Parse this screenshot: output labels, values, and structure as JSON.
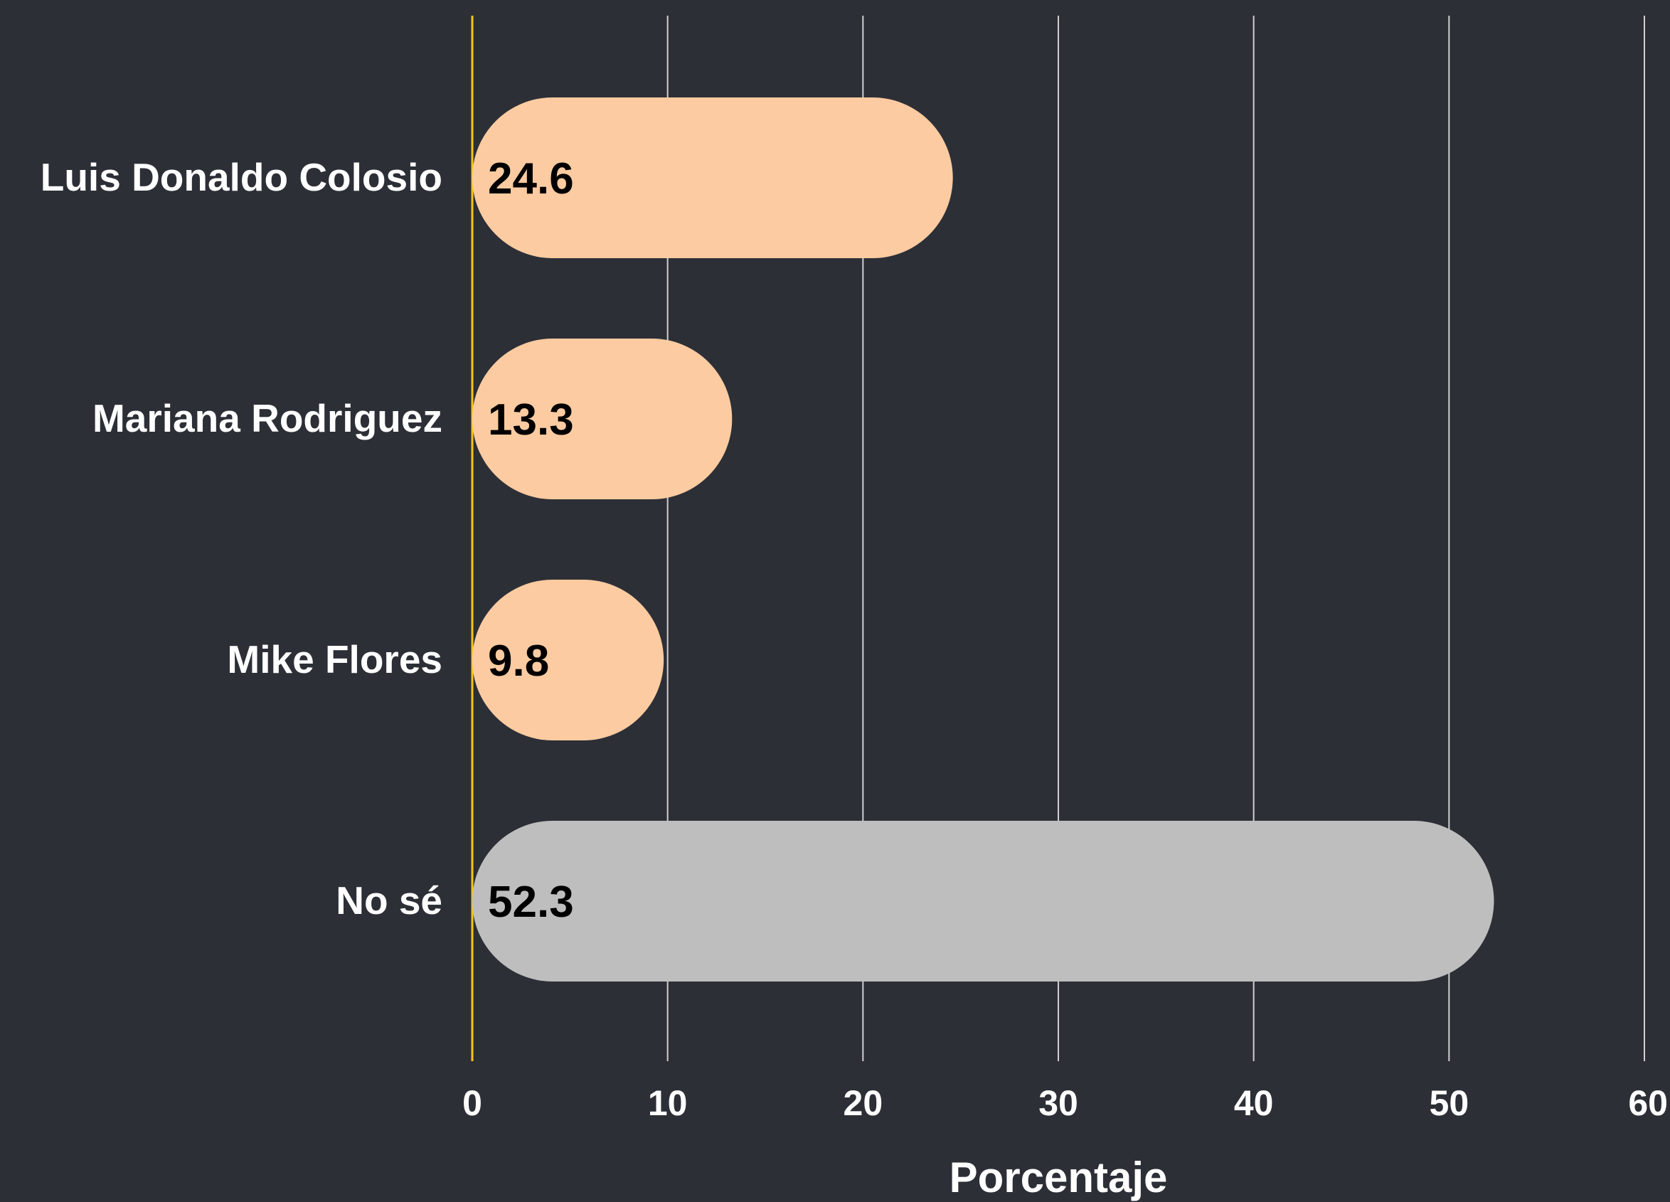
{
  "chart_data": {
    "type": "bar",
    "orientation": "horizontal",
    "categories": [
      "Luis Donaldo Colosio",
      "Mariana Rodriguez",
      "Mike Flores",
      "No sé"
    ],
    "values": [
      24.6,
      13.3,
      9.8,
      52.3
    ],
    "value_labels": [
      "24.6",
      "13.3",
      "9.8",
      "52.3"
    ],
    "bar_colors": [
      "#fdcba1",
      "#fdcba1",
      "#fdcba1",
      "#bebebe"
    ],
    "xlabel": "Porcentaje",
    "ylabel": "",
    "xlim": [
      0,
      60
    ],
    "xticks": [
      0,
      10,
      20,
      30,
      40,
      50,
      60
    ],
    "xtick_labels": [
      "0",
      "10",
      "20",
      "30",
      "40",
      "50",
      "60"
    ],
    "grid": true,
    "background_color": "#2c2f36",
    "gridline_color": "#d0d0d0",
    "zero_line_color": "#f5c518",
    "legend": false
  }
}
